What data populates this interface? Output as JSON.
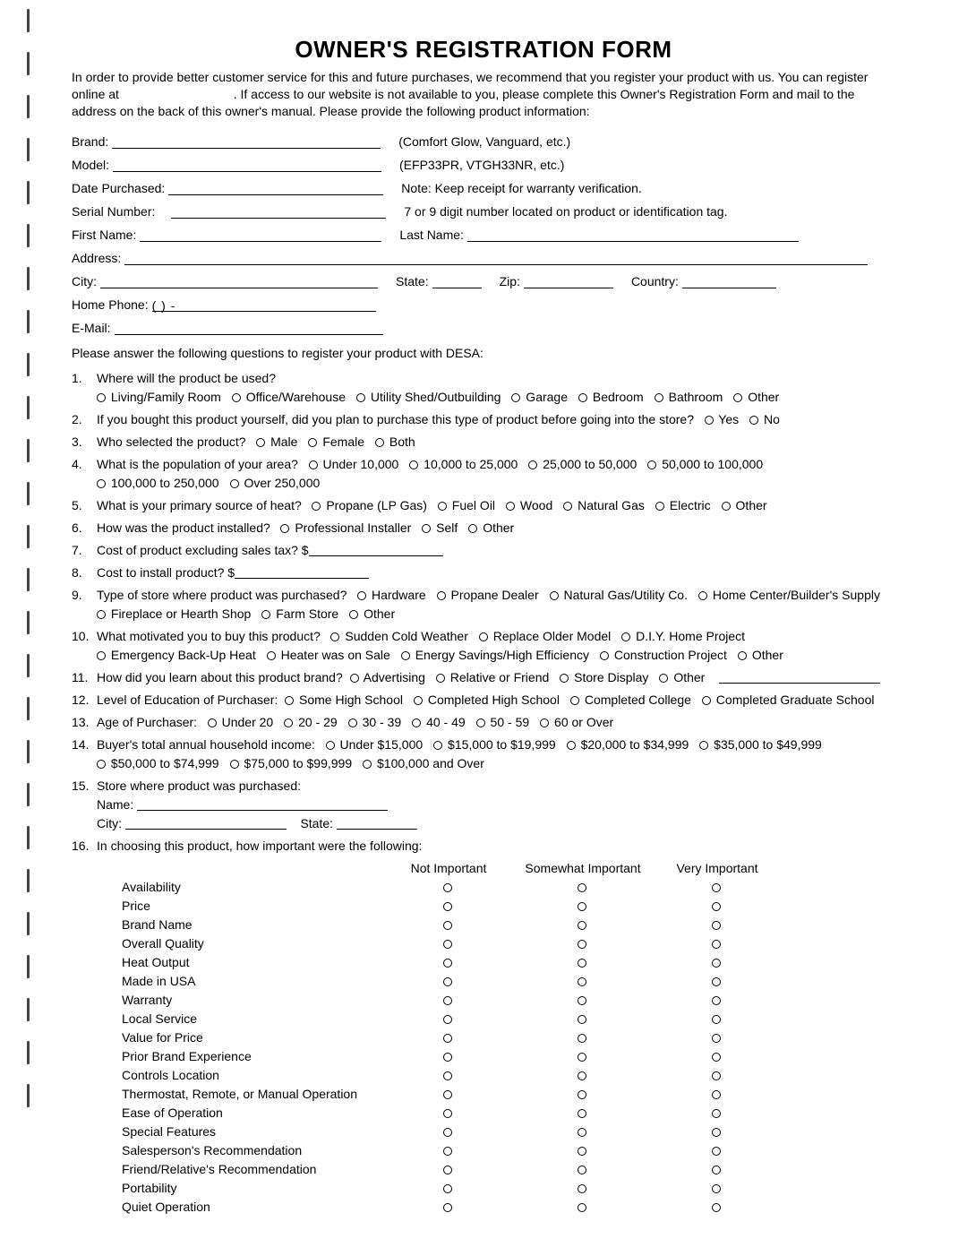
{
  "title": "OWNER'S REGISTRATION FORM",
  "intro_part1": "In order to provide better customer service for this and future purchases, we recommend that you register your product with us. You can register online at ",
  "intro_part2": ". If access to our website is not available to you, please complete this Owner's Registration Form and mail to the address on the back of this owner's manual. Please provide the following product information:",
  "fields": {
    "brand": "Brand:",
    "brand_note": "(Comfort Glow, Vanguard, etc.)",
    "model": "Model:",
    "model_note": "(EFP33PR, VTGH33NR, etc.)",
    "date": "Date Purchased:",
    "date_note": "Note: Keep receipt for warranty verification.",
    "serial": "Serial Number:",
    "serial_note": "7 or 9 digit number located on product or identification tag.",
    "first": "First Name:",
    "last": "Last Name:",
    "address": "Address:",
    "city": "City:",
    "state": "State:",
    "zip": "Zip:",
    "country": "Country:",
    "phone": "Home Phone:",
    "phone_fmt": "(          )          -",
    "email": "E-Mail:"
  },
  "q_intro": "Please answer the following questions to register your product with DESA:",
  "q1": {
    "text": "Where will the product be used?",
    "opts": [
      "Living/Family Room",
      "Office/Warehouse",
      "Utility Shed/Outbuilding",
      "Garage",
      "Bedroom",
      "Bathroom",
      "Other"
    ]
  },
  "q2": {
    "text": "If you bought this product yourself, did you plan to purchase this type of product before going into the store?",
    "opts": [
      "Yes",
      "No"
    ]
  },
  "q3": {
    "text": "Who selected the product?",
    "opts": [
      "Male",
      "Female",
      "Both"
    ]
  },
  "q4": {
    "text": "What is the population of your area?",
    "opts": [
      "Under 10,000",
      "10,000 to 25,000",
      "25,000 to 50,000",
      "50,000 to 100,000",
      "100,000 to 250,000",
      "Over 250,000"
    ]
  },
  "q5": {
    "text": "What is your primary source of heat?",
    "opts": [
      "Propane (LP Gas)",
      "Fuel Oil",
      "Wood",
      "Natural Gas",
      "Electric",
      "Other"
    ]
  },
  "q6": {
    "text": "How was the product installed?",
    "opts": [
      "Professional Installer",
      "Self",
      "Other"
    ]
  },
  "q7": {
    "text": "Cost of product excluding sales tax? $"
  },
  "q8": {
    "text": "Cost to install product? $"
  },
  "q9": {
    "text": "Type of store where product was purchased?",
    "opts": [
      "Hardware",
      "Propane Dealer",
      "Natural Gas/Utility Co.",
      "Home Center/Builder's Supply",
      "Fireplace or Hearth Shop",
      "Farm Store",
      "Other"
    ]
  },
  "q10": {
    "text": "What motivated you to buy this product?",
    "opts": [
      "Sudden Cold Weather",
      "Replace Older Model",
      "D.I.Y. Home Project",
      "Emergency Back-Up Heat",
      "Heater was on Sale",
      "Energy Savings/High Efficiency",
      "Construction Project",
      "Other"
    ]
  },
  "q11": {
    "text": "How did you learn about this product brand?",
    "opts": [
      "Advertising",
      "Relative or Friend",
      "Store Display",
      "Other"
    ]
  },
  "q12": {
    "text": "Level of Education of Purchaser:",
    "opts": [
      "Some High School",
      "Completed High School",
      "Completed College",
      "Completed Graduate School"
    ]
  },
  "q13": {
    "text": "Age of Purchaser:",
    "opts": [
      "Under 20",
      "20 - 29",
      "30 - 39",
      "40 - 49",
      "50 - 59",
      "60 or Over"
    ]
  },
  "q14": {
    "text": "Buyer's total annual household income:",
    "opts": [
      "Under $15,000",
      "$15,000 to $19,999",
      "$20,000 to $34,999",
      "$35,000 to $49,999",
      "$50,000 to $74,999",
      "$75,000 to $99,999",
      "$100,000 and Over"
    ]
  },
  "q15": {
    "text": "Store where product was purchased:",
    "name": "Name:",
    "city": "City:",
    "state": "State:"
  },
  "q16": {
    "text": "In choosing this product, how important were the following:",
    "cols": [
      "Not Important",
      "Somewhat Important",
      "Very Important"
    ],
    "rows": [
      "Availability",
      "Price",
      "Brand Name",
      "Overall Quality",
      "Heat Output",
      "Made in USA",
      "Warranty",
      "Local Service",
      "Value for Price",
      "Prior Brand Experience",
      "Controls Location",
      "Thermostat, Remote, or Manual Operation",
      "Ease of Operation",
      "Special Features",
      "Salesperson's Recommendation",
      "Friend/Relative's Recommendation",
      "Portability",
      "Quiet Operation"
    ]
  }
}
